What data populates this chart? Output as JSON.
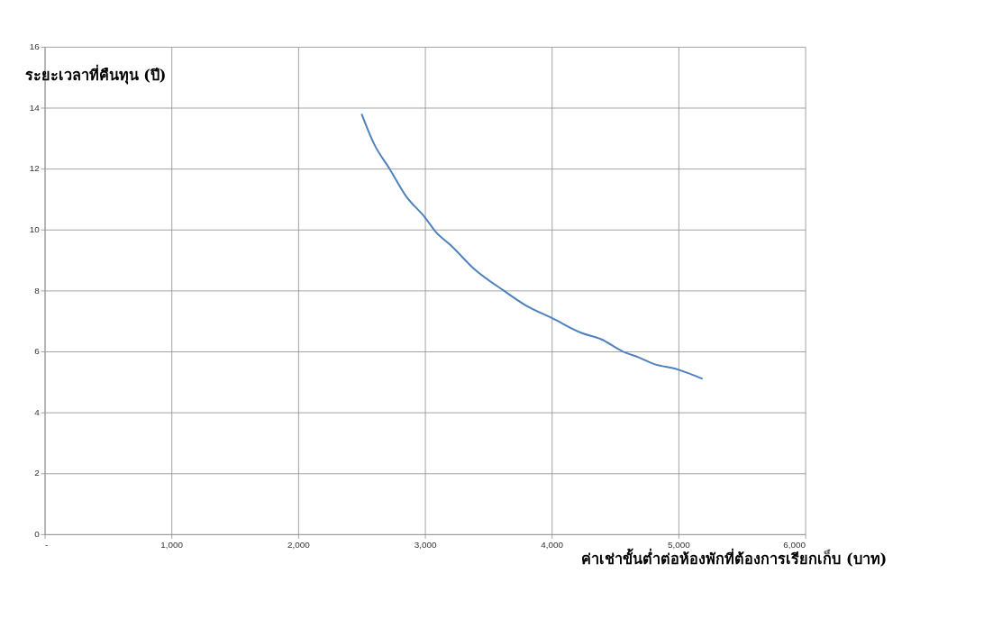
{
  "chart_data": {
    "type": "line",
    "xlabel": "ค่าเช่าขั้นต่ำต่อห้องพักที่ต้องการเรียกเก็บ (บาท)",
    "ylabel": "ระยะเวลาที่คืนทุน (ปี)",
    "x": [
      2500,
      2600,
      2720,
      2850,
      3000,
      3090,
      3200,
      3390,
      3620,
      3800,
      4000,
      4240,
      4390,
      4560,
      4690,
      4800,
      5000,
      5100,
      5190
    ],
    "series": [
      {
        "color": "#4f81bd",
        "values": [
          13.8,
          12.8,
          12.0,
          11.1,
          10.4,
          9.9,
          9.5,
          8.7,
          8.0,
          7.5,
          7.1,
          6.6,
          6.4,
          6.0,
          5.8,
          5.6,
          5.4,
          5.25,
          5.1
        ]
      }
    ],
    "xlim": [
      0,
      6000
    ],
    "ylim": [
      0,
      16
    ],
    "xticks": [
      {
        "value": 0,
        "label": "-"
      },
      {
        "value": 1000,
        "label": "1,000"
      },
      {
        "value": 2000,
        "label": "2,000"
      },
      {
        "value": 3000,
        "label": "3,000"
      },
      {
        "value": 4000,
        "label": "4,000"
      },
      {
        "value": 5000,
        "label": "5,000"
      },
      {
        "value": 6000,
        "label": "6,000"
      }
    ],
    "yticks": [
      0,
      2,
      4,
      6,
      8,
      10,
      12,
      14,
      16
    ],
    "grid": true,
    "marker": "none",
    "line_style": "solid"
  }
}
